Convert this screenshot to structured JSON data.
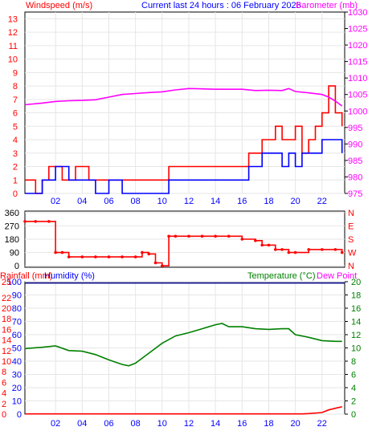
{
  "header": {
    "windspeed_label": "Windspeed (m/s)",
    "current_label": "Current last 24 hours : 06 February 2026",
    "barometer_label": "Barometer (mb)"
  },
  "lower_header": {
    "rainfall_label": "Rainfall (mm)",
    "humidity_label": "Humidity (%)",
    "temperature_label": "Temperature (°C)",
    "dewpoint_label": "Dew Point"
  },
  "colors": {
    "windspeed": "#ff0000",
    "gust": "#ff0000",
    "avgwind": "#0000ff",
    "barometer": "#ff00ff",
    "direction": "#ff0000",
    "humidity": "#000080",
    "temperature": "#008000",
    "rainfall": "#ff0000",
    "dewpoint": "#ff00ff",
    "text_blue": "#0000ff",
    "text_red": "#ff0000",
    "text_magenta": "#ff00ff",
    "text_green": "#008000",
    "axis": "#000000"
  },
  "chart_data": [
    {
      "type": "line",
      "title": "Current last 24 hours : 06 February 2026",
      "x_ticks": [
        "02",
        "04",
        "06",
        "08",
        "10",
        "12",
        "14",
        "16",
        "18",
        "20",
        "22"
      ],
      "x_tick_hours": [
        2,
        4,
        6,
        8,
        10,
        12,
        14,
        16,
        18,
        20,
        22
      ],
      "xlim": [
        -0.3,
        23.7
      ],
      "left_axis": {
        "label": "Windspeed (m/s)",
        "ylim": [
          0,
          13.5
        ],
        "ticks": [
          0,
          1,
          2,
          3,
          4,
          5,
          6,
          7,
          8,
          9,
          10,
          11,
          12,
          13
        ]
      },
      "right_axis": {
        "label": "Barometer (mb)",
        "ylim": [
          975,
          1030
        ],
        "ticks": [
          975,
          980,
          985,
          990,
          995,
          1000,
          1005,
          1010,
          1015,
          1020,
          1025,
          1030
        ]
      },
      "series": [
        {
          "name": "Barometer (mb)",
          "axis": "right",
          "points": [
            [
              -0.3,
              1001.9
            ],
            [
              1,
              1002.4
            ],
            [
              2,
              1002.9
            ],
            [
              3,
              1003.1
            ],
            [
              4,
              1003.2
            ],
            [
              5,
              1003.4
            ],
            [
              6,
              1004.2
            ],
            [
              7,
              1005.0
            ],
            [
              8,
              1005.3
            ],
            [
              9,
              1005.6
            ],
            [
              10,
              1005.8
            ],
            [
              11,
              1006.4
            ],
            [
              12,
              1006.8
            ],
            [
              13,
              1006.7
            ],
            [
              14,
              1006.6
            ],
            [
              15,
              1006.6
            ],
            [
              16,
              1006.6
            ],
            [
              17,
              1006.2
            ],
            [
              18,
              1006.3
            ],
            [
              19,
              1006.2
            ],
            [
              19.5,
              1006.8
            ],
            [
              20,
              1005.9
            ],
            [
              21,
              1005.5
            ],
            [
              22,
              1005.0
            ],
            [
              22.5,
              1004.2
            ],
            [
              23,
              1003.0
            ],
            [
              23.5,
              1001.5
            ]
          ]
        },
        {
          "name": "Gust",
          "axis": "left",
          "points": [
            [
              -0.3,
              1
            ],
            [
              0.5,
              0
            ],
            [
              1,
              1
            ],
            [
              1.5,
              2
            ],
            [
              2.5,
              1
            ],
            [
              3.5,
              2
            ],
            [
              4.5,
              1
            ],
            [
              6,
              1
            ],
            [
              7,
              1
            ],
            [
              8,
              1
            ],
            [
              9,
              1
            ],
            [
              10,
              1
            ],
            [
              10.5,
              2
            ],
            [
              11,
              2
            ],
            [
              12,
              2
            ],
            [
              13,
              2
            ],
            [
              14,
              2
            ],
            [
              15,
              2
            ],
            [
              16,
              2
            ],
            [
              16.5,
              3
            ],
            [
              17,
              3
            ],
            [
              17.5,
              4
            ],
            [
              18,
              4
            ],
            [
              18.5,
              5
            ],
            [
              19,
              4
            ],
            [
              19.5,
              4
            ],
            [
              20,
              5
            ],
            [
              20.5,
              3
            ],
            [
              21,
              4
            ],
            [
              21.5,
              5
            ],
            [
              22,
              6
            ],
            [
              22.5,
              8
            ],
            [
              23,
              6
            ],
            [
              23.5,
              5
            ]
          ]
        },
        {
          "name": "Average",
          "axis": "left",
          "points": [
            [
              -0.3,
              0
            ],
            [
              1,
              1
            ],
            [
              2,
              2
            ],
            [
              3,
              1
            ],
            [
              4,
              1
            ],
            [
              5,
              0
            ],
            [
              6,
              1
            ],
            [
              7,
              0
            ],
            [
              8,
              0
            ],
            [
              9,
              0
            ],
            [
              10,
              0
            ],
            [
              10.5,
              1
            ],
            [
              11,
              1
            ],
            [
              12,
              1
            ],
            [
              13,
              1
            ],
            [
              14,
              1
            ],
            [
              15,
              1
            ],
            [
              16,
              1
            ],
            [
              16.5,
              2
            ],
            [
              17,
              2
            ],
            [
              17.5,
              3
            ],
            [
              18,
              3
            ],
            [
              18.5,
              3
            ],
            [
              19,
              2
            ],
            [
              19.5,
              3
            ],
            [
              20,
              2
            ],
            [
              20.5,
              3
            ],
            [
              21,
              3
            ],
            [
              21.5,
              3
            ],
            [
              22,
              4
            ],
            [
              22.5,
              4
            ],
            [
              23,
              4
            ],
            [
              23.5,
              3
            ]
          ]
        }
      ]
    },
    {
      "type": "scatter",
      "x_ticks": [],
      "xlim": [
        -0.3,
        23.7
      ],
      "left_axis": {
        "label": "",
        "ylim": [
          -10,
          370
        ],
        "ticks": [
          0,
          90,
          180,
          270,
          360
        ]
      },
      "right_axis": {
        "label": "",
        "labels": [
          "N",
          "W",
          "S",
          "E",
          "N"
        ],
        "ticks": [
          0,
          90,
          180,
          270,
          360
        ]
      },
      "series": [
        {
          "name": "Wind direction",
          "axis": "left",
          "points": [
            [
              -0.3,
              300
            ],
            [
              0.5,
              300
            ],
            [
              1.5,
              300
            ],
            [
              2,
              90
            ],
            [
              2.5,
              90
            ],
            [
              3,
              60
            ],
            [
              4,
              60
            ],
            [
              5,
              60
            ],
            [
              6,
              60
            ],
            [
              7,
              60
            ],
            [
              8,
              60
            ],
            [
              8.5,
              90
            ],
            [
              9,
              80
            ],
            [
              9.5,
              20
            ],
            [
              10,
              0
            ],
            [
              10.5,
              200
            ],
            [
              11,
              200
            ],
            [
              12,
              200
            ],
            [
              13,
              200
            ],
            [
              14,
              200
            ],
            [
              15,
              200
            ],
            [
              16,
              180
            ],
            [
              17,
              170
            ],
            [
              17.5,
              140
            ],
            [
              18,
              140
            ],
            [
              18.5,
              110
            ],
            [
              19,
              110
            ],
            [
              19.5,
              90
            ],
            [
              20,
              90
            ],
            [
              21,
              110
            ],
            [
              22,
              110
            ],
            [
              23,
              110
            ],
            [
              23.5,
              90
            ]
          ]
        }
      ]
    },
    {
      "type": "line",
      "x_ticks": [
        "02",
        "04",
        "06",
        "08",
        "10",
        "12",
        "14",
        "16",
        "18",
        "20",
        "22"
      ],
      "x_tick_hours": [
        2,
        4,
        6,
        8,
        10,
        12,
        14,
        16,
        18,
        20,
        22
      ],
      "xlim": [
        -0.3,
        23.7
      ],
      "left_axis": {
        "label": "Rainfall (mm)",
        "ylim": [
          0,
          25
        ],
        "ticks": [
          0,
          2,
          4,
          6,
          8,
          10,
          12,
          14,
          16,
          18,
          20,
          22,
          25
        ]
      },
      "left_axis_2": {
        "label": "Humidity (%)",
        "ylim": [
          0,
          100
        ],
        "ticks": [
          0,
          10,
          20,
          30,
          40,
          50,
          60,
          70,
          80,
          90,
          100
        ]
      },
      "right_axis": {
        "label": "Temperature (°C)",
        "ylim": [
          0,
          20
        ],
        "ticks": [
          0,
          2,
          4,
          6,
          8,
          10,
          12,
          14,
          16,
          18,
          20
        ]
      },
      "series": [
        {
          "name": "Humidity (%)",
          "axis": "left2",
          "points": [
            [
              -0.3,
              99
            ],
            [
              23.7,
              99
            ]
          ]
        },
        {
          "name": "Temperature (°C)",
          "axis": "right",
          "points": [
            [
              -0.3,
              9.9
            ],
            [
              1,
              10.1
            ],
            [
              2,
              10.3
            ],
            [
              3,
              9.6
            ],
            [
              4,
              9.5
            ],
            [
              5,
              9.0
            ],
            [
              6,
              8.2
            ],
            [
              7,
              7.5
            ],
            [
              7.5,
              7.3
            ],
            [
              8,
              7.7
            ],
            [
              9,
              9.2
            ],
            [
              10,
              10.7
            ],
            [
              11,
              11.8
            ],
            [
              12,
              12.3
            ],
            [
              13,
              12.9
            ],
            [
              14,
              13.5
            ],
            [
              14.5,
              13.7
            ],
            [
              15,
              13.2
            ],
            [
              16,
              13.2
            ],
            [
              17,
              12.9
            ],
            [
              18,
              12.8
            ],
            [
              19,
              12.9
            ],
            [
              19.5,
              12.9
            ],
            [
              20,
              12.0
            ],
            [
              21,
              11.6
            ],
            [
              22,
              11.1
            ],
            [
              23,
              11.0
            ],
            [
              23.5,
              11.0
            ]
          ]
        },
        {
          "name": "Rainfall (mm)",
          "axis": "left",
          "points": [
            [
              -0.3,
              0.05
            ],
            [
              20.5,
              0.05
            ],
            [
              21,
              0.1
            ],
            [
              22,
              0.3
            ],
            [
              22.5,
              0.8
            ],
            [
              23,
              1.1
            ],
            [
              23.5,
              1.4
            ]
          ]
        }
      ]
    }
  ]
}
